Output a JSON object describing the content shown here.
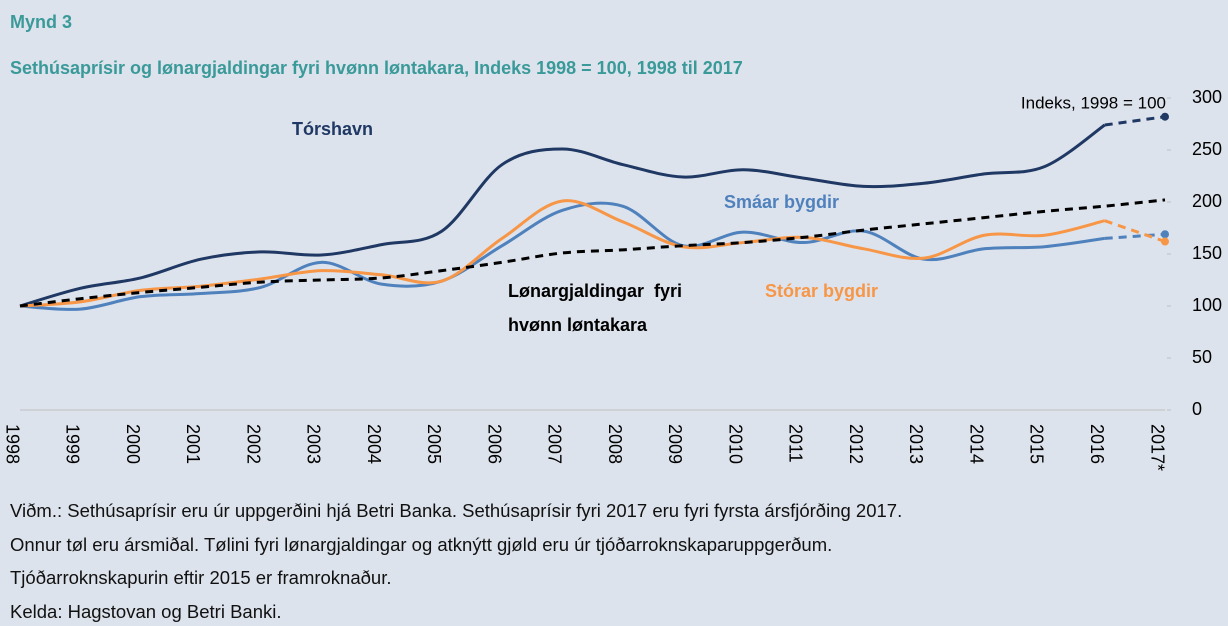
{
  "chart_data": {
    "type": "line",
    "title": "Mynd 3",
    "subtitle": "Sethúsaprísir og lønargjaldingar fyri hvønn løntakara, Indeks 1998 = 100, 1998 til 2017",
    "y_axis_label": "Indeks, 1998 = 100",
    "categories": [
      "1998",
      "1999",
      "2000",
      "2001",
      "2002",
      "2003",
      "2004",
      "2005",
      "2006",
      "2007",
      "2008",
      "2009",
      "2010",
      "2011",
      "2012",
      "2013",
      "2014",
      "2015",
      "2016",
      "2017*"
    ],
    "series": [
      {
        "name": "Tórshavn",
        "color": "#1f3864",
        "line_style": "solid",
        "dashed_last_segment": true,
        "end_marker": true,
        "values": [
          100,
          117,
          127,
          145,
          152,
          149,
          159,
          172,
          236,
          251,
          236,
          224,
          231,
          223,
          215,
          218,
          227,
          234,
          274,
          282
        ]
      },
      {
        "name": "Smáar bygdir",
        "color": "#4f81bd",
        "line_style": "solid",
        "dashed_last_segment": true,
        "end_marker": true,
        "values": [
          100,
          97,
          109,
          112,
          118,
          142,
          121,
          124,
          158,
          192,
          196,
          158,
          171,
          161,
          172,
          145,
          155,
          157,
          165,
          169
        ]
      },
      {
        "name": "Stórar bygdir",
        "color": "#f79646",
        "line_style": "solid",
        "dashed_last_segment": true,
        "end_marker": true,
        "values": [
          100,
          104,
          115,
          119,
          126,
          134,
          130,
          124,
          165,
          201,
          181,
          157,
          161,
          166,
          155,
          146,
          168,
          168,
          182,
          162
        ]
      },
      {
        "name": "Lønargjaldingar  fyri hvønn løntakara",
        "color": "#000000",
        "line_style": "dashed",
        "dashed_last_segment": false,
        "end_marker": false,
        "values": [
          100,
          107,
          113,
          118,
          123,
          125,
          127,
          134,
          142,
          151,
          154,
          158,
          161,
          166,
          173,
          179,
          185,
          191,
          196,
          202
        ]
      }
    ],
    "ylim": [
      0,
      300
    ],
    "yticks": [
      0,
      50,
      100,
      150,
      200,
      250,
      300
    ],
    "grid": false,
    "notes": [
      "Viðm.: Sethúsaprísir eru úr uppgerðini hjá Betri Banka. Sethúsaprísir fyri 2017 eru fyri fyrsta ársfjórðing 2017.",
      "Onnur tøl eru ársmiðal. Tølini fyri lønargjaldingar og atknýtt gjøld eru úr tjóðarroknskaparuppgerðum.",
      "Tjóðarroknskapurin eftir 2015 er framroknaður.",
      "Kelda: Hagstovan og Betri Banki."
    ]
  }
}
